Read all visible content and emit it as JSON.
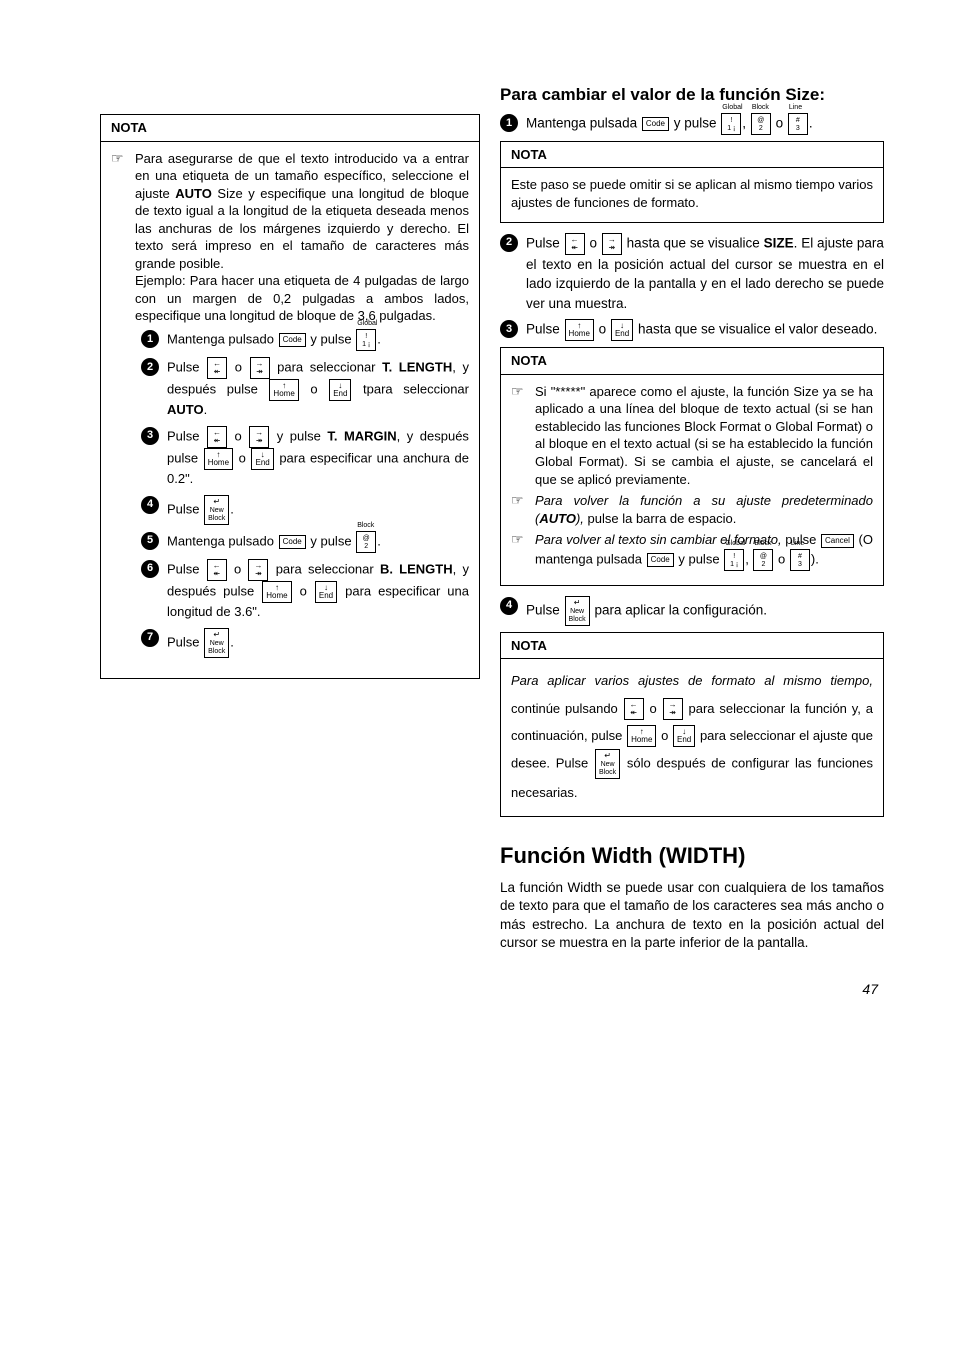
{
  "left": {
    "nota_label": "NOTA",
    "nota1_text": "Para asegurarse de que el texto introducido va a entrar en una etiqueta de un tamaño específico, seleccione el ajuste <b>AUTO</b> Size y especifique una longitud de bloque de texto igual a la longitud de la etiqueta deseada menos las anchuras de los márgenes izquierdo y derecho. El texto será impreso en el tamaño de caracteres más grande posible.",
    "nota1_example": "Ejemplo: Para hacer una etiqueta de 4 pulgadas de largo con un margen de 0,2 pulgadas a ambos lados, especifique una longitud de bloque de 3,6 pulgadas.",
    "s1": "Mantenga pulsado",
    "s1b": "y pulse",
    "s2a": "Pulse",
    "s2b": "o",
    "s2c": "para seleccionar <b>T. LENGTH</b>, y después pulse",
    "s2d": "o",
    "s2e": "tpara seleccionar <b>AUTO</b>.",
    "s3a": "Pulse",
    "s3b": "o",
    "s3c": "y pulse <b>T. MARGIN</b>, y después pulse",
    "s3d": "o",
    "s3e": "para especificar una anchura de 0.2\".",
    "s4": "Pulse",
    "s5a": "Mantenga pulsado",
    "s5b": "y pulse",
    "s6a": "Pulse",
    "s6b": "o",
    "s6c": "para seleccionar <b>B. LENGTH</b>, y después pulse",
    "s6d": "o",
    "s6e": "para especificar una longitud de 3.6\".",
    "s7": "Pulse"
  },
  "right": {
    "heading": "Para cambiar el valor de la función Size:",
    "r1a": "Mantenga pulsada",
    "r1b": "y pulse",
    "r1c": "o",
    "nota_label": "NOTA",
    "nota2": "Este paso se puede omitir si se aplican al mismo tiempo varios ajustes de funciones de formato.",
    "r2a": "Pulse",
    "r2b": "o",
    "r2c": "hasta que se visualice <b>SIZE</b>. El ajuste para el texto en la posición actual del cursor se muestra en el lado izquierdo de la pantalla y en el lado derecho se puede ver una muestra.",
    "r3a": "Pulse",
    "r3b": "o",
    "r3c": "hasta que se visualice el valor deseado.",
    "nota3_p1": "Si \"*****\" aparece como el ajuste, la función Size ya se ha aplicado a una línea del bloque de texto actual (si se han establecido las funciones Block Format o Global Format) o al bloque en el texto actual (si se ha establecido la función Global Format). Si se cambia el ajuste, se cancelará el que se aplicó previamente.",
    "nota3_p2a": "Para volver la función a su ajuste predeterminado (<b>AUTO</b>),",
    "nota3_p2b": "pulse la barra de espacio.",
    "nota3_p3a": "Para volver al texto sin cambiar el formato,",
    "nota3_p3b": "pulse",
    "nota3_p3c": "(O mantenga pulsada",
    "nota3_p3d": "y pulse",
    "nota3_p3e": "o",
    "r4": "Pulse",
    "r4b": "para aplicar la configuración.",
    "nota4a": "Para aplicar varios ajustes de formato al mismo tiempo,",
    "nota4b": "continúe pulsando",
    "nota4c": "o",
    "nota4d": "para seleccionar la función y, a continuación, pulse",
    "nota4e": "o",
    "nota4f": "para seleccionar el ajuste que desee. Pulse",
    "nota4g": "sólo después de configurar las funciones necesarias.",
    "width_h": "Función Width (WIDTH)",
    "width_p": "La  función Width se puede usar con cualquiera de los tamaños de texto para que el tamaño de los caracteres sea más ancho o más estrecho. La anchura de texto en la posición actual del cursor se muestra en la parte inferior de la pantalla."
  },
  "keys": {
    "code": "Code",
    "global": "Global",
    "block": "Block",
    "line": "Line",
    "home": "Home",
    "end": "End",
    "cancel": "Cancel",
    "newblock": "New<br>Block"
  },
  "page": "47"
}
